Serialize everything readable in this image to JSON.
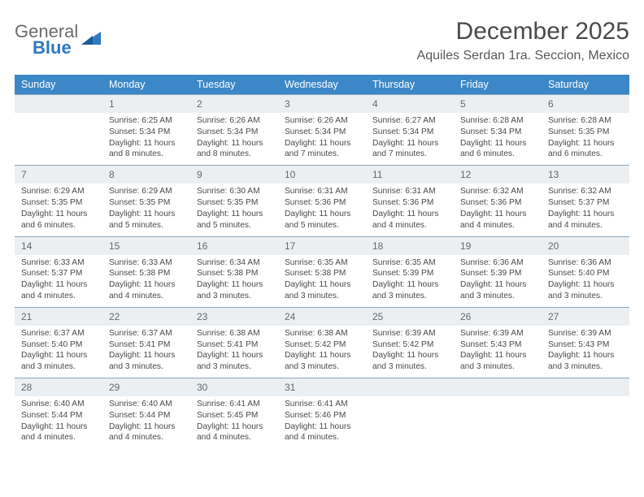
{
  "logo": {
    "word1": "General",
    "word2": "Blue"
  },
  "header": {
    "title": "December 2025",
    "location": "Aquiles Serdan 1ra. Seccion, Mexico"
  },
  "colors": {
    "header_bg": "#3c87c7",
    "header_text": "#ffffff",
    "daynum_bg": "#eceff1",
    "daynum_border": "#8aa6bd",
    "body_text": "#4a4a4a",
    "title_text": "#4a4a4a",
    "logo_gray": "#6b6b6b",
    "logo_blue": "#2f78c2"
  },
  "dayNames": [
    "Sunday",
    "Monday",
    "Tuesday",
    "Wednesday",
    "Thursday",
    "Friday",
    "Saturday"
  ],
  "weeks": [
    [
      {
        "n": "",
        "sr": "",
        "ss": "",
        "dl": ""
      },
      {
        "n": "1",
        "sr": "Sunrise: 6:25 AM",
        "ss": "Sunset: 5:34 PM",
        "dl": "Daylight: 11 hours and 8 minutes."
      },
      {
        "n": "2",
        "sr": "Sunrise: 6:26 AM",
        "ss": "Sunset: 5:34 PM",
        "dl": "Daylight: 11 hours and 8 minutes."
      },
      {
        "n": "3",
        "sr": "Sunrise: 6:26 AM",
        "ss": "Sunset: 5:34 PM",
        "dl": "Daylight: 11 hours and 7 minutes."
      },
      {
        "n": "4",
        "sr": "Sunrise: 6:27 AM",
        "ss": "Sunset: 5:34 PM",
        "dl": "Daylight: 11 hours and 7 minutes."
      },
      {
        "n": "5",
        "sr": "Sunrise: 6:28 AM",
        "ss": "Sunset: 5:34 PM",
        "dl": "Daylight: 11 hours and 6 minutes."
      },
      {
        "n": "6",
        "sr": "Sunrise: 6:28 AM",
        "ss": "Sunset: 5:35 PM",
        "dl": "Daylight: 11 hours and 6 minutes."
      }
    ],
    [
      {
        "n": "7",
        "sr": "Sunrise: 6:29 AM",
        "ss": "Sunset: 5:35 PM",
        "dl": "Daylight: 11 hours and 6 minutes."
      },
      {
        "n": "8",
        "sr": "Sunrise: 6:29 AM",
        "ss": "Sunset: 5:35 PM",
        "dl": "Daylight: 11 hours and 5 minutes."
      },
      {
        "n": "9",
        "sr": "Sunrise: 6:30 AM",
        "ss": "Sunset: 5:35 PM",
        "dl": "Daylight: 11 hours and 5 minutes."
      },
      {
        "n": "10",
        "sr": "Sunrise: 6:31 AM",
        "ss": "Sunset: 5:36 PM",
        "dl": "Daylight: 11 hours and 5 minutes."
      },
      {
        "n": "11",
        "sr": "Sunrise: 6:31 AM",
        "ss": "Sunset: 5:36 PM",
        "dl": "Daylight: 11 hours and 4 minutes."
      },
      {
        "n": "12",
        "sr": "Sunrise: 6:32 AM",
        "ss": "Sunset: 5:36 PM",
        "dl": "Daylight: 11 hours and 4 minutes."
      },
      {
        "n": "13",
        "sr": "Sunrise: 6:32 AM",
        "ss": "Sunset: 5:37 PM",
        "dl": "Daylight: 11 hours and 4 minutes."
      }
    ],
    [
      {
        "n": "14",
        "sr": "Sunrise: 6:33 AM",
        "ss": "Sunset: 5:37 PM",
        "dl": "Daylight: 11 hours and 4 minutes."
      },
      {
        "n": "15",
        "sr": "Sunrise: 6:33 AM",
        "ss": "Sunset: 5:38 PM",
        "dl": "Daylight: 11 hours and 4 minutes."
      },
      {
        "n": "16",
        "sr": "Sunrise: 6:34 AM",
        "ss": "Sunset: 5:38 PM",
        "dl": "Daylight: 11 hours and 3 minutes."
      },
      {
        "n": "17",
        "sr": "Sunrise: 6:35 AM",
        "ss": "Sunset: 5:38 PM",
        "dl": "Daylight: 11 hours and 3 minutes."
      },
      {
        "n": "18",
        "sr": "Sunrise: 6:35 AM",
        "ss": "Sunset: 5:39 PM",
        "dl": "Daylight: 11 hours and 3 minutes."
      },
      {
        "n": "19",
        "sr": "Sunrise: 6:36 AM",
        "ss": "Sunset: 5:39 PM",
        "dl": "Daylight: 11 hours and 3 minutes."
      },
      {
        "n": "20",
        "sr": "Sunrise: 6:36 AM",
        "ss": "Sunset: 5:40 PM",
        "dl": "Daylight: 11 hours and 3 minutes."
      }
    ],
    [
      {
        "n": "21",
        "sr": "Sunrise: 6:37 AM",
        "ss": "Sunset: 5:40 PM",
        "dl": "Daylight: 11 hours and 3 minutes."
      },
      {
        "n": "22",
        "sr": "Sunrise: 6:37 AM",
        "ss": "Sunset: 5:41 PM",
        "dl": "Daylight: 11 hours and 3 minutes."
      },
      {
        "n": "23",
        "sr": "Sunrise: 6:38 AM",
        "ss": "Sunset: 5:41 PM",
        "dl": "Daylight: 11 hours and 3 minutes."
      },
      {
        "n": "24",
        "sr": "Sunrise: 6:38 AM",
        "ss": "Sunset: 5:42 PM",
        "dl": "Daylight: 11 hours and 3 minutes."
      },
      {
        "n": "25",
        "sr": "Sunrise: 6:39 AM",
        "ss": "Sunset: 5:42 PM",
        "dl": "Daylight: 11 hours and 3 minutes."
      },
      {
        "n": "26",
        "sr": "Sunrise: 6:39 AM",
        "ss": "Sunset: 5:43 PM",
        "dl": "Daylight: 11 hours and 3 minutes."
      },
      {
        "n": "27",
        "sr": "Sunrise: 6:39 AM",
        "ss": "Sunset: 5:43 PM",
        "dl": "Daylight: 11 hours and 3 minutes."
      }
    ],
    [
      {
        "n": "28",
        "sr": "Sunrise: 6:40 AM",
        "ss": "Sunset: 5:44 PM",
        "dl": "Daylight: 11 hours and 4 minutes."
      },
      {
        "n": "29",
        "sr": "Sunrise: 6:40 AM",
        "ss": "Sunset: 5:44 PM",
        "dl": "Daylight: 11 hours and 4 minutes."
      },
      {
        "n": "30",
        "sr": "Sunrise: 6:41 AM",
        "ss": "Sunset: 5:45 PM",
        "dl": "Daylight: 11 hours and 4 minutes."
      },
      {
        "n": "31",
        "sr": "Sunrise: 6:41 AM",
        "ss": "Sunset: 5:46 PM",
        "dl": "Daylight: 11 hours and 4 minutes."
      },
      {
        "n": "",
        "sr": "",
        "ss": "",
        "dl": ""
      },
      {
        "n": "",
        "sr": "",
        "ss": "",
        "dl": ""
      },
      {
        "n": "",
        "sr": "",
        "ss": "",
        "dl": ""
      }
    ]
  ]
}
